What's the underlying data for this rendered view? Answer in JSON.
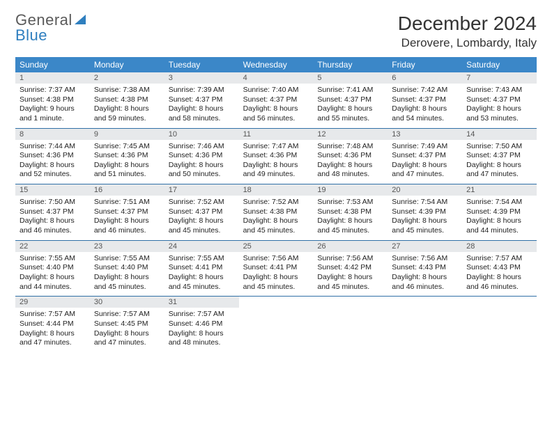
{
  "brand": {
    "word1": "General",
    "word2": "Blue"
  },
  "title": "December 2024",
  "location": "Derovere, Lombardy, Italy",
  "colors": {
    "header_bg": "#3b87c8",
    "header_text": "#ffffff",
    "daynum_bg": "#e7e9eb",
    "week_divider": "#2f6fa6",
    "brand_accent": "#2f7fbf",
    "body_text": "#212121"
  },
  "day_labels": [
    "Sunday",
    "Monday",
    "Tuesday",
    "Wednesday",
    "Thursday",
    "Friday",
    "Saturday"
  ],
  "weeks": [
    [
      {
        "n": "1",
        "sr": "Sunrise: 7:37 AM",
        "ss": "Sunset: 4:38 PM",
        "d1": "Daylight: 9 hours",
        "d2": "and 1 minute."
      },
      {
        "n": "2",
        "sr": "Sunrise: 7:38 AM",
        "ss": "Sunset: 4:38 PM",
        "d1": "Daylight: 8 hours",
        "d2": "and 59 minutes."
      },
      {
        "n": "3",
        "sr": "Sunrise: 7:39 AM",
        "ss": "Sunset: 4:37 PM",
        "d1": "Daylight: 8 hours",
        "d2": "and 58 minutes."
      },
      {
        "n": "4",
        "sr": "Sunrise: 7:40 AM",
        "ss": "Sunset: 4:37 PM",
        "d1": "Daylight: 8 hours",
        "d2": "and 56 minutes."
      },
      {
        "n": "5",
        "sr": "Sunrise: 7:41 AM",
        "ss": "Sunset: 4:37 PM",
        "d1": "Daylight: 8 hours",
        "d2": "and 55 minutes."
      },
      {
        "n": "6",
        "sr": "Sunrise: 7:42 AM",
        "ss": "Sunset: 4:37 PM",
        "d1": "Daylight: 8 hours",
        "d2": "and 54 minutes."
      },
      {
        "n": "7",
        "sr": "Sunrise: 7:43 AM",
        "ss": "Sunset: 4:37 PM",
        "d1": "Daylight: 8 hours",
        "d2": "and 53 minutes."
      }
    ],
    [
      {
        "n": "8",
        "sr": "Sunrise: 7:44 AM",
        "ss": "Sunset: 4:36 PM",
        "d1": "Daylight: 8 hours",
        "d2": "and 52 minutes."
      },
      {
        "n": "9",
        "sr": "Sunrise: 7:45 AM",
        "ss": "Sunset: 4:36 PM",
        "d1": "Daylight: 8 hours",
        "d2": "and 51 minutes."
      },
      {
        "n": "10",
        "sr": "Sunrise: 7:46 AM",
        "ss": "Sunset: 4:36 PM",
        "d1": "Daylight: 8 hours",
        "d2": "and 50 minutes."
      },
      {
        "n": "11",
        "sr": "Sunrise: 7:47 AM",
        "ss": "Sunset: 4:36 PM",
        "d1": "Daylight: 8 hours",
        "d2": "and 49 minutes."
      },
      {
        "n": "12",
        "sr": "Sunrise: 7:48 AM",
        "ss": "Sunset: 4:36 PM",
        "d1": "Daylight: 8 hours",
        "d2": "and 48 minutes."
      },
      {
        "n": "13",
        "sr": "Sunrise: 7:49 AM",
        "ss": "Sunset: 4:37 PM",
        "d1": "Daylight: 8 hours",
        "d2": "and 47 minutes."
      },
      {
        "n": "14",
        "sr": "Sunrise: 7:50 AM",
        "ss": "Sunset: 4:37 PM",
        "d1": "Daylight: 8 hours",
        "d2": "and 47 minutes."
      }
    ],
    [
      {
        "n": "15",
        "sr": "Sunrise: 7:50 AM",
        "ss": "Sunset: 4:37 PM",
        "d1": "Daylight: 8 hours",
        "d2": "and 46 minutes."
      },
      {
        "n": "16",
        "sr": "Sunrise: 7:51 AM",
        "ss": "Sunset: 4:37 PM",
        "d1": "Daylight: 8 hours",
        "d2": "and 46 minutes."
      },
      {
        "n": "17",
        "sr": "Sunrise: 7:52 AM",
        "ss": "Sunset: 4:37 PM",
        "d1": "Daylight: 8 hours",
        "d2": "and 45 minutes."
      },
      {
        "n": "18",
        "sr": "Sunrise: 7:52 AM",
        "ss": "Sunset: 4:38 PM",
        "d1": "Daylight: 8 hours",
        "d2": "and 45 minutes."
      },
      {
        "n": "19",
        "sr": "Sunrise: 7:53 AM",
        "ss": "Sunset: 4:38 PM",
        "d1": "Daylight: 8 hours",
        "d2": "and 45 minutes."
      },
      {
        "n": "20",
        "sr": "Sunrise: 7:54 AM",
        "ss": "Sunset: 4:39 PM",
        "d1": "Daylight: 8 hours",
        "d2": "and 45 minutes."
      },
      {
        "n": "21",
        "sr": "Sunrise: 7:54 AM",
        "ss": "Sunset: 4:39 PM",
        "d1": "Daylight: 8 hours",
        "d2": "and 44 minutes."
      }
    ],
    [
      {
        "n": "22",
        "sr": "Sunrise: 7:55 AM",
        "ss": "Sunset: 4:40 PM",
        "d1": "Daylight: 8 hours",
        "d2": "and 44 minutes."
      },
      {
        "n": "23",
        "sr": "Sunrise: 7:55 AM",
        "ss": "Sunset: 4:40 PM",
        "d1": "Daylight: 8 hours",
        "d2": "and 45 minutes."
      },
      {
        "n": "24",
        "sr": "Sunrise: 7:55 AM",
        "ss": "Sunset: 4:41 PM",
        "d1": "Daylight: 8 hours",
        "d2": "and 45 minutes."
      },
      {
        "n": "25",
        "sr": "Sunrise: 7:56 AM",
        "ss": "Sunset: 4:41 PM",
        "d1": "Daylight: 8 hours",
        "d2": "and 45 minutes."
      },
      {
        "n": "26",
        "sr": "Sunrise: 7:56 AM",
        "ss": "Sunset: 4:42 PM",
        "d1": "Daylight: 8 hours",
        "d2": "and 45 minutes."
      },
      {
        "n": "27",
        "sr": "Sunrise: 7:56 AM",
        "ss": "Sunset: 4:43 PM",
        "d1": "Daylight: 8 hours",
        "d2": "and 46 minutes."
      },
      {
        "n": "28",
        "sr": "Sunrise: 7:57 AM",
        "ss": "Sunset: 4:43 PM",
        "d1": "Daylight: 8 hours",
        "d2": "and 46 minutes."
      }
    ],
    [
      {
        "n": "29",
        "sr": "Sunrise: 7:57 AM",
        "ss": "Sunset: 4:44 PM",
        "d1": "Daylight: 8 hours",
        "d2": "and 47 minutes."
      },
      {
        "n": "30",
        "sr": "Sunrise: 7:57 AM",
        "ss": "Sunset: 4:45 PM",
        "d1": "Daylight: 8 hours",
        "d2": "and 47 minutes."
      },
      {
        "n": "31",
        "sr": "Sunrise: 7:57 AM",
        "ss": "Sunset: 4:46 PM",
        "d1": "Daylight: 8 hours",
        "d2": "and 48 minutes."
      },
      {
        "empty": true,
        "n": "",
        "sr": "",
        "ss": "",
        "d1": "",
        "d2": ""
      },
      {
        "empty": true,
        "n": "",
        "sr": "",
        "ss": "",
        "d1": "",
        "d2": ""
      },
      {
        "empty": true,
        "n": "",
        "sr": "",
        "ss": "",
        "d1": "",
        "d2": ""
      },
      {
        "empty": true,
        "n": "",
        "sr": "",
        "ss": "",
        "d1": "",
        "d2": ""
      }
    ]
  ]
}
